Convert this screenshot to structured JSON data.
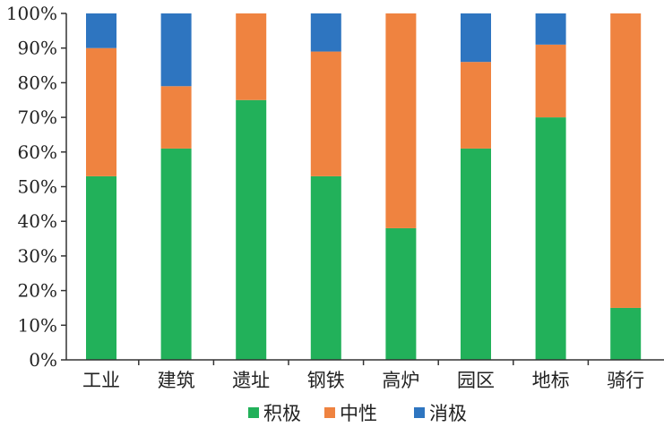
{
  "chart_data": {
    "type": "bar",
    "stacked": true,
    "title": "",
    "xlabel": "",
    "ylabel": "",
    "ylim": [
      0,
      100
    ],
    "yticks": [
      0,
      10,
      20,
      30,
      40,
      50,
      60,
      70,
      80,
      90,
      100
    ],
    "ytick_suffix": "%",
    "grid": false,
    "legend_position": "bottom-center",
    "categories": [
      "工业",
      "建筑",
      "遗址",
      "钢铁",
      "高炉",
      "园区",
      "地标",
      "骑行"
    ],
    "series": [
      {
        "name": "积极",
        "color": "#22b15a",
        "values": [
          53,
          61,
          75,
          53,
          38,
          61,
          70,
          15
        ]
      },
      {
        "name": "中性",
        "color": "#ef8340",
        "values": [
          37,
          18,
          25,
          36,
          62,
          25,
          21,
          85
        ]
      },
      {
        "name": "消极",
        "color": "#2e75c0",
        "values": [
          10,
          21,
          0,
          11,
          0,
          14,
          9,
          0
        ]
      }
    ]
  }
}
